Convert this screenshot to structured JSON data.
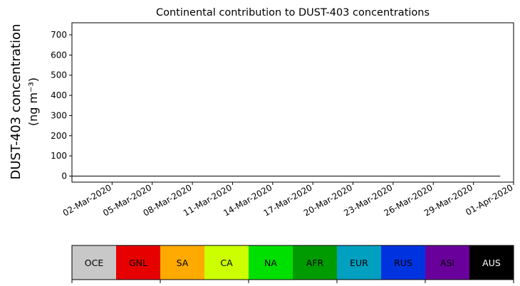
{
  "chart_data": {
    "type": "area",
    "stacked": true,
    "title": "Continental contribution to DUST-403 concentrations",
    "ylabel_line1": "DUST-403 concentration",
    "ylabel_line2": "(ng m⁻³)",
    "ylim": [
      -30,
      760
    ],
    "yticks": [
      "0",
      "100",
      "200",
      "300",
      "400",
      "500",
      "600",
      "700"
    ],
    "x_start": "2020-02-28",
    "x_end": "2020-03-31",
    "xlim": [
      "2020-02-28",
      "2020-04-01"
    ],
    "xticks": [
      "02-Mar-2020",
      "05-Mar-2020",
      "08-Mar-2020",
      "11-Mar-2020",
      "14-Mar-2020",
      "17-Mar-2020",
      "20-Mar-2020",
      "23-Mar-2020",
      "26-Mar-2020",
      "29-Mar-2020",
      "01-Apr-2020"
    ],
    "x": [
      "2020-02-28T00",
      "2020-02-28T12",
      "2020-02-29T00",
      "2020-02-29T12",
      "2020-03-01T00",
      "2020-03-01T12",
      "2020-03-02T00",
      "2020-03-02T12",
      "2020-03-03T00",
      "2020-03-03T12",
      "2020-03-04T00",
      "2020-03-04T12",
      "2020-03-05T00",
      "2020-03-05T12",
      "2020-03-06T00",
      "2020-03-06T12",
      "2020-03-07T00",
      "2020-03-07T12",
      "2020-03-08T00",
      "2020-03-08T12",
      "2020-03-09T00",
      "2020-03-09T12",
      "2020-03-10T00",
      "2020-03-10T12",
      "2020-03-11T00",
      "2020-03-11T12",
      "2020-03-12T00",
      "2020-03-12T12",
      "2020-03-13T00",
      "2020-03-13T12",
      "2020-03-14T00",
      "2020-03-14T12",
      "2020-03-15T00",
      "2020-03-15T12",
      "2020-03-16T00",
      "2020-03-16T12",
      "2020-03-17T00",
      "2020-03-17T12",
      "2020-03-18T00",
      "2020-03-18T12",
      "2020-03-19T00",
      "2020-03-19T12",
      "2020-03-20T00",
      "2020-03-20T12",
      "2020-03-21T00",
      "2020-03-21T12",
      "2020-03-22T00",
      "2020-03-22T12",
      "2020-03-23T00",
      "2020-03-23T12",
      "2020-03-24T00",
      "2020-03-24T12",
      "2020-03-25T00",
      "2020-03-25T12",
      "2020-03-26T00",
      "2020-03-26T12",
      "2020-03-27T00",
      "2020-03-27T12",
      "2020-03-28T00",
      "2020-03-28T12",
      "2020-03-29T00",
      "2020-03-29T12",
      "2020-03-30T00",
      "2020-03-30T12",
      "2020-03-31T00"
    ],
    "series": [
      {
        "name": "OCE",
        "color": "#c8c8c8",
        "values": [
          0,
          0,
          0,
          0,
          0,
          0,
          0,
          0,
          0,
          0,
          0,
          0,
          0,
          0,
          0,
          0,
          0,
          0,
          0,
          0,
          0,
          0,
          0,
          0,
          0,
          0,
          0,
          0,
          0,
          0,
          0,
          0,
          0,
          0,
          0,
          0,
          0,
          0,
          0,
          0,
          0,
          0,
          0,
          0,
          0,
          0,
          0,
          0,
          0,
          0,
          0,
          0,
          0,
          0,
          0,
          0,
          0,
          0,
          0,
          0,
          0,
          0,
          0,
          0,
          0
        ]
      },
      {
        "name": "GNL",
        "color": "#e60000",
        "values": [
          0,
          0,
          0,
          0,
          0,
          0,
          0,
          0,
          0,
          0,
          0,
          0,
          0,
          0,
          0,
          0,
          0,
          0,
          0,
          0,
          0,
          0,
          0,
          0,
          0,
          0,
          0,
          0,
          0,
          0,
          0,
          0,
          0,
          0,
          0,
          0,
          0,
          0,
          0,
          0,
          0,
          0,
          0,
          0,
          0,
          0,
          0,
          0,
          0,
          0,
          0,
          0,
          0,
          0,
          0,
          0,
          0,
          0,
          0,
          0,
          0,
          0,
          0,
          0,
          0
        ]
      },
      {
        "name": "SA",
        "color": "#ffaa00",
        "values": [
          0,
          0,
          0,
          0,
          0,
          0,
          0,
          0,
          0,
          0,
          0,
          0,
          0,
          0,
          0,
          0,
          0,
          0,
          0,
          0,
          0,
          0,
          0,
          0,
          0,
          0,
          0,
          0,
          0,
          0,
          0,
          0,
          0,
          0,
          0,
          0,
          0,
          0,
          0,
          0,
          0,
          0,
          0,
          0,
          0,
          0,
          0,
          0,
          0,
          0,
          0,
          0,
          0,
          0,
          0,
          0,
          0,
          0,
          0,
          0,
          0,
          0,
          0,
          0,
          0
        ]
      },
      {
        "name": "CA",
        "color": "#ccff00",
        "values": [
          0,
          0,
          0,
          0,
          0,
          0,
          0,
          0,
          0,
          0,
          0,
          0,
          0,
          0,
          0,
          0,
          0,
          0,
          0,
          0,
          0,
          0,
          0,
          0,
          0,
          0,
          0,
          0,
          0,
          0,
          0,
          0,
          0,
          0,
          0,
          0,
          0,
          0,
          0,
          0,
          0,
          0,
          0,
          0,
          0,
          0,
          0,
          0,
          0,
          0,
          0,
          0,
          0,
          0,
          0,
          0,
          0,
          0,
          0,
          0,
          0,
          0,
          0,
          0,
          0
        ]
      },
      {
        "name": "NA",
        "color": "#00e000",
        "values": [
          0,
          0,
          0,
          0,
          0,
          0,
          0,
          0,
          0,
          0,
          0,
          0,
          0,
          0,
          0,
          0,
          0,
          0,
          0,
          0,
          0,
          0,
          0,
          0,
          0,
          0,
          0,
          0,
          0,
          0,
          0,
          0,
          0,
          0,
          0,
          0,
          0,
          0,
          0,
          0,
          0,
          0,
          0,
          0,
          0,
          0,
          0,
          0,
          0,
          0,
          0,
          0,
          0,
          0,
          0,
          0,
          0,
          0,
          0,
          0,
          0,
          0,
          0,
          0,
          0
        ]
      },
      {
        "name": "AFR",
        "color": "#009b00",
        "values": [
          0,
          0,
          0,
          0,
          0,
          0,
          0,
          0,
          0,
          0,
          0,
          0,
          0,
          0,
          0,
          0,
          0,
          0,
          0,
          0,
          0,
          0,
          0,
          0,
          0,
          0,
          0,
          0,
          0,
          0,
          0,
          0,
          0,
          0,
          0,
          0,
          0,
          0,
          0,
          0,
          0,
          0,
          0,
          0,
          0,
          0,
          0,
          0,
          0,
          0,
          0,
          0,
          0,
          0,
          0,
          0,
          0,
          0,
          0,
          0,
          0,
          0,
          0,
          0,
          0
        ]
      },
      {
        "name": "EUR",
        "color": "#00a0c0",
        "values": [
          0,
          0,
          0,
          0,
          0,
          0,
          0,
          0,
          0,
          0,
          0,
          0,
          0,
          0,
          0,
          0,
          0,
          0,
          0,
          0,
          0,
          0,
          0,
          0,
          0,
          0,
          0,
          0,
          0,
          0,
          0,
          0,
          0,
          0,
          0,
          0,
          0,
          0,
          0,
          0,
          0,
          0,
          0,
          0,
          0,
          0,
          0,
          0,
          0,
          0,
          0,
          0,
          0,
          0,
          0,
          0,
          0,
          0,
          0,
          0,
          0,
          0,
          0,
          0,
          0
        ]
      },
      {
        "name": "RUS",
        "color": "#0033e0",
        "values": [
          0,
          0,
          0,
          0,
          0,
          0,
          0,
          0,
          0,
          0,
          0,
          0,
          0,
          0,
          0,
          0,
          0,
          0,
          0,
          0,
          0,
          0,
          0,
          0,
          0,
          0,
          0,
          0,
          0,
          0,
          0,
          0,
          0,
          0,
          0,
          0,
          0,
          0,
          0,
          0,
          0,
          0,
          0,
          0,
          0,
          0,
          0,
          0,
          0,
          0,
          0,
          0,
          0,
          0,
          0,
          0,
          0,
          0,
          0,
          0,
          0,
          0,
          0,
          0,
          0
        ]
      },
      {
        "name": "ASI",
        "color": "#6a009b",
        "values": [
          0,
          0,
          0,
          0,
          0,
          0,
          0,
          0,
          0,
          0,
          0,
          0,
          0,
          0,
          0,
          0,
          0,
          0,
          0,
          0,
          0,
          0,
          0,
          0,
          0,
          0,
          0,
          0,
          0,
          0,
          0,
          0,
          0,
          0,
          0,
          0,
          0,
          0,
          0,
          0,
          0,
          0,
          0,
          0,
          0,
          0,
          0,
          0,
          0,
          0,
          0,
          0,
          0,
          0,
          0,
          0,
          0,
          0,
          0,
          0,
          0,
          0,
          0,
          0,
          0
        ]
      },
      {
        "name": "AUS",
        "color": "#000000",
        "values": [
          0,
          0,
          0,
          0,
          0,
          0,
          0,
          0,
          0,
          0,
          0,
          0,
          0,
          0,
          0,
          0,
          0,
          0,
          0,
          0,
          0,
          0,
          0,
          0,
          0,
          0,
          0,
          0,
          0,
          0,
          0,
          0,
          0,
          0,
          0,
          0,
          0,
          0,
          0,
          0,
          0,
          0,
          0,
          0,
          0,
          0,
          0,
          0,
          0,
          0,
          0,
          0,
          0,
          0,
          0,
          0,
          0,
          0,
          0,
          0,
          0,
          0,
          0,
          0,
          0
        ]
      }
    ],
    "legend": {
      "placement": "bottom",
      "entries": [
        {
          "label": "OCE",
          "color": "#c8c8c8",
          "text_color": "#000000"
        },
        {
          "label": "GNL",
          "color": "#e60000",
          "text_color": "#000000"
        },
        {
          "label": "SA",
          "color": "#ffaa00",
          "text_color": "#000000"
        },
        {
          "label": "CA",
          "color": "#ccff00",
          "text_color": "#000000"
        },
        {
          "label": "NA",
          "color": "#00e000",
          "text_color": "#000000"
        },
        {
          "label": "AFR",
          "color": "#009b00",
          "text_color": "#000000"
        },
        {
          "label": "EUR",
          "color": "#00a0c0",
          "text_color": "#000000"
        },
        {
          "label": "RUS",
          "color": "#0033e0",
          "text_color": "#000000"
        },
        {
          "label": "ASI",
          "color": "#6a009b",
          "text_color": "#000000"
        },
        {
          "label": "AUS",
          "color": "#000000",
          "text_color": "#ffffff"
        }
      ]
    },
    "grid": false
  }
}
